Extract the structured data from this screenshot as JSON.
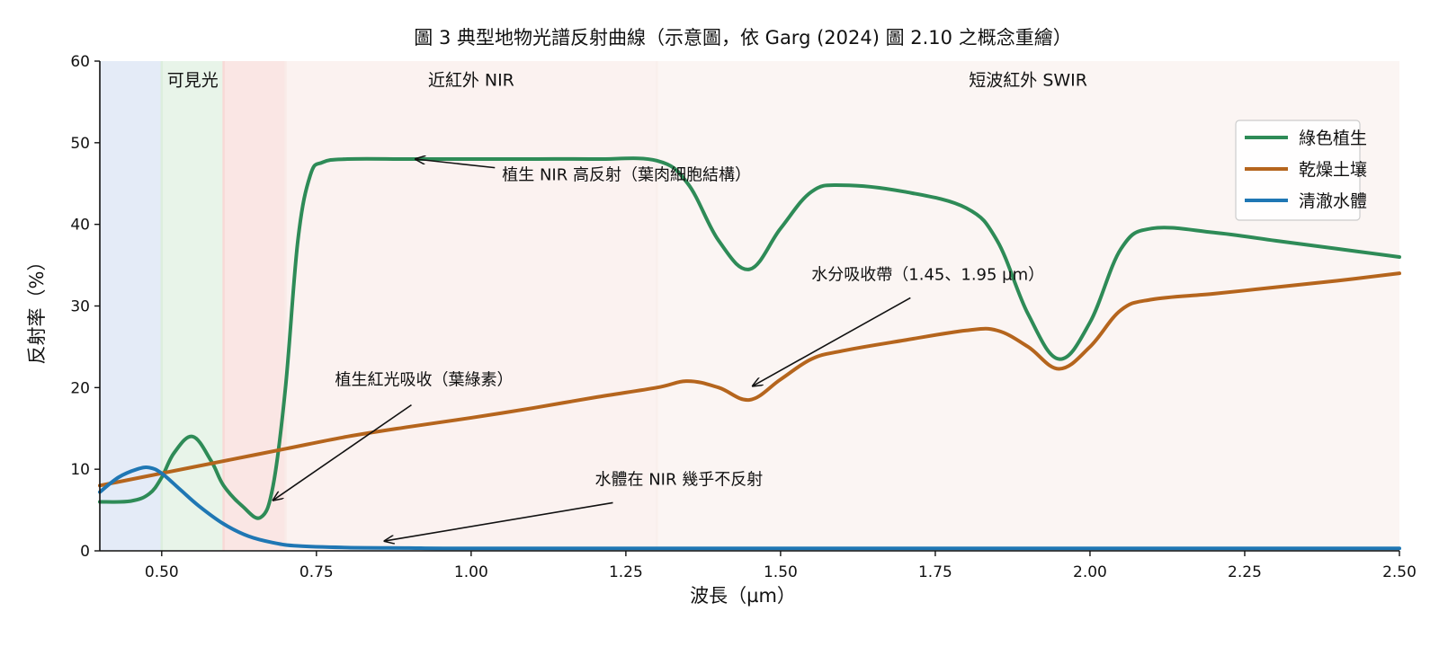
{
  "chart_data": {
    "type": "line",
    "title": "圖 3 典型地物光譜反射曲線（示意圖，依 Garg (2024) 圖 2.10 之概念重繪）",
    "xlabel": "波長（µm）",
    "ylabel": "反射率（%）",
    "xlim": [
      0.4,
      2.5
    ],
    "ylim": [
      0,
      60
    ],
    "x_ticks": [
      0.5,
      0.75,
      1.0,
      1.25,
      1.5,
      1.75,
      2.0,
      2.25,
      2.5
    ],
    "x_tick_labels": [
      "0.50",
      "0.75",
      "1.00",
      "1.25",
      "1.50",
      "1.75",
      "2.00",
      "2.25",
      "2.50"
    ],
    "y_ticks": [
      0,
      10,
      20,
      30,
      40,
      50,
      60
    ],
    "y_tick_labels": [
      "0",
      "10",
      "20",
      "30",
      "40",
      "50",
      "60"
    ],
    "grid": false,
    "legend_position": "upper-right",
    "bands": [
      {
        "range": [
          0.4,
          0.5
        ],
        "color": "#d6e0f3",
        "label": ""
      },
      {
        "range": [
          0.5,
          0.6
        ],
        "color": "#dceedd",
        "label": "可見光"
      },
      {
        "range": [
          0.6,
          0.7
        ],
        "color": "#f8d9d6",
        "label": ""
      },
      {
        "range": [
          0.7,
          1.3
        ],
        "color": "#f9ebe8",
        "label": "近紅外 NIR"
      },
      {
        "range": [
          1.3,
          2.5
        ],
        "color": "#f9efec",
        "label": "短波紅外 SWIR"
      }
    ],
    "band_label_y": 57,
    "series": [
      {
        "name": "綠色植生",
        "color": "#2e8b57",
        "x": [
          0.4,
          0.45,
          0.48,
          0.5,
          0.52,
          0.55,
          0.58,
          0.6,
          0.63,
          0.66,
          0.68,
          0.7,
          0.72,
          0.74,
          0.76,
          0.8,
          0.9,
          1.0,
          1.1,
          1.2,
          1.3,
          1.35,
          1.4,
          1.45,
          1.5,
          1.55,
          1.6,
          1.7,
          1.8,
          1.85,
          1.9,
          1.95,
          2.0,
          2.05,
          2.1,
          2.2,
          2.3,
          2.4,
          2.5
        ],
        "y": [
          6,
          6.1,
          7,
          9,
          12,
          14,
          11,
          8,
          5.5,
          4.1,
          8,
          20,
          38,
          46,
          47.6,
          48,
          48,
          48,
          48,
          48,
          47.8,
          45,
          38,
          34.5,
          39.5,
          44,
          44.8,
          44,
          42,
          38,
          29,
          23.5,
          28,
          37,
          39.5,
          39,
          38,
          37,
          36
        ]
      },
      {
        "name": "乾燥土壤",
        "color": "#b5651d",
        "x": [
          0.4,
          0.5,
          0.6,
          0.7,
          0.8,
          0.9,
          1.0,
          1.1,
          1.2,
          1.3,
          1.35,
          1.4,
          1.45,
          1.5,
          1.55,
          1.6,
          1.7,
          1.8,
          1.85,
          1.9,
          1.95,
          2.0,
          2.05,
          2.1,
          2.2,
          2.3,
          2.4,
          2.5
        ],
        "y": [
          8,
          9.5,
          11,
          12.5,
          14,
          15.2,
          16.3,
          17.5,
          18.8,
          20,
          20.8,
          20,
          18.5,
          21,
          23.5,
          24.5,
          25.8,
          27,
          27,
          25,
          22.3,
          25,
          29.5,
          30.8,
          31.5,
          32.3,
          33.1,
          34
        ]
      },
      {
        "name": "清澈水體",
        "color": "#1f77b4",
        "x": [
          0.4,
          0.43,
          0.46,
          0.48,
          0.5,
          0.53,
          0.56,
          0.6,
          0.64,
          0.68,
          0.72,
          0.8,
          0.9,
          1.0,
          1.5,
          2.0,
          2.5
        ],
        "y": [
          7.2,
          9,
          10,
          10.2,
          9.5,
          7.5,
          5.5,
          3.3,
          1.8,
          1.0,
          0.6,
          0.4,
          0.35,
          0.3,
          0.3,
          0.3,
          0.3
        ]
      }
    ],
    "annotations": [
      {
        "text": "植生 NIR 高反射（葉肉細胞結構）",
        "point": [
          0.91,
          48
        ],
        "text_pos": [
          1.05,
          45.4
        ]
      },
      {
        "text": "水分吸收帶（1.45、1.95 µm）",
        "point": [
          1.455,
          20.2
        ],
        "text_pos": [
          1.55,
          33.2
        ]
      },
      {
        "text": "植生紅光吸收（葉綠素）",
        "point": [
          0.68,
          6.2
        ],
        "text_pos": [
          0.78,
          20.3
        ]
      },
      {
        "text": "水體在 NIR 幾乎不反射",
        "point": [
          0.86,
          1.2
        ],
        "text_pos": [
          1.2,
          8.1
        ]
      }
    ]
  }
}
